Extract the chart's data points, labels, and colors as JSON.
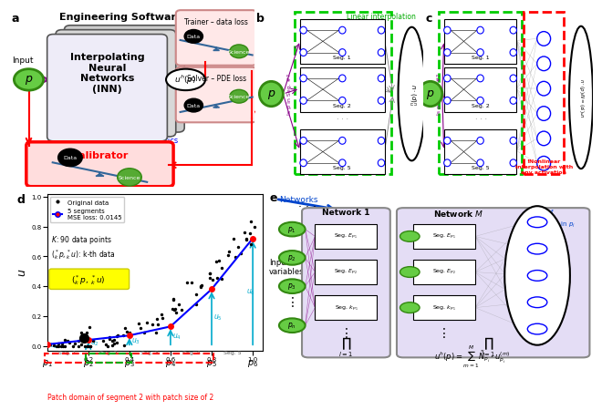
{
  "title": "Engineering Software 2.0",
  "arrow_color": "#00aacc",
  "red_color": "#cc0000",
  "green_color": "#00aa00",
  "calibrator_bg": "#ffdddd",
  "trainer_bg": "#ffe8e8",
  "inn_bg": "#e0ddf0",
  "panel_bg": "#f5f5f5"
}
